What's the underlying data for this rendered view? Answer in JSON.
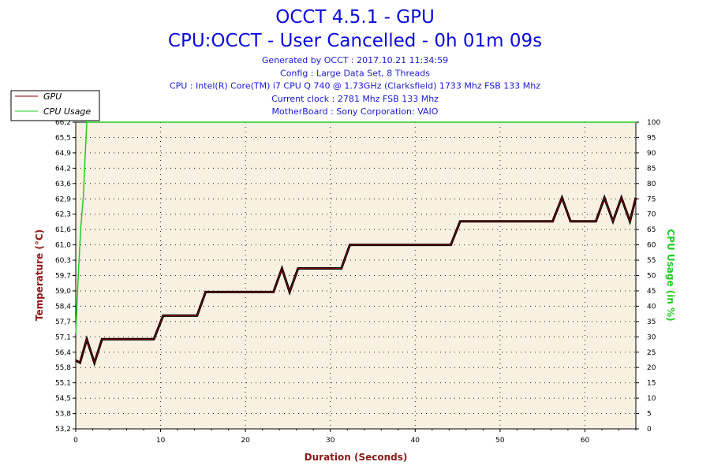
{
  "header": {
    "title": "OCCT 4.5.1 - GPU",
    "subtitle": "CPU:OCCT - User Cancelled - 0h 01m 09s",
    "info_lines": [
      "Generated by OCCT : 2017.10.21 11:34:59",
      "Config : Large Data Set, 8 Threads",
      "CPU : Intel(R) Core(TM) i7 CPU Q 740 @ 1.73GHz (Clarksfield) 1733 Mhz FSB 133 Mhz",
      "Current clock : 2781 Mhz FSB 133 Mhz",
      "MotherBoard : Sony Corporation: VAIO"
    ]
  },
  "legend": {
    "position": "top-left",
    "entries": [
      "GPU",
      "CPU Usage"
    ]
  },
  "colors": {
    "gpu": "#8b0000",
    "cpu": "#22cc22",
    "plot_bg": "#f8f0e0",
    "title": "#0a0ae0",
    "info": "#1a1ad0",
    "left_axis_label": "#8b1a1a",
    "right_axis_label": "#22cc22"
  },
  "chart_data": {
    "type": "line",
    "xlabel": "Duration (Seconds)",
    "ylabel": "Temperature (°C)",
    "y2label": "CPU Usage (in %)",
    "xlim": [
      0,
      66
    ],
    "ylim": [
      53.2,
      66.2
    ],
    "y2lim": [
      0,
      100
    ],
    "grid": true,
    "x_ticks": [
      "0",
      "10",
      "20",
      "30",
      "40",
      "50",
      "60"
    ],
    "y_ticks": [
      "53,2",
      "53,8",
      "54,5",
      "55,1",
      "55,8",
      "56,4",
      "57,1",
      "57,7",
      "58,4",
      "59,0",
      "59,7",
      "60,3",
      "61,0",
      "61,6",
      "62,3",
      "62,9",
      "63,6",
      "64,2",
      "64,9",
      "65,5",
      "66,2"
    ],
    "y2_ticks": [
      "0",
      "5",
      "10",
      "15",
      "20",
      "25",
      "30",
      "35",
      "40",
      "45",
      "50",
      "55",
      "60",
      "65",
      "70",
      "75",
      "80",
      "85",
      "90",
      "95",
      "100"
    ],
    "series": [
      {
        "name": "GPU",
        "axis": "left",
        "points": [
          [
            0,
            56.1
          ],
          [
            0.5,
            56.0
          ],
          [
            1.3,
            57.0
          ],
          [
            2.2,
            56.0
          ],
          [
            3.1,
            57.0
          ],
          [
            9.2,
            57.0
          ],
          [
            10.3,
            58.0
          ],
          [
            14.3,
            58.0
          ],
          [
            15.3,
            59.0
          ],
          [
            23.3,
            59.0
          ],
          [
            24.3,
            60.0
          ],
          [
            25.2,
            59.0
          ],
          [
            26.2,
            60.0
          ],
          [
            31.3,
            60.0
          ],
          [
            32.3,
            61.0
          ],
          [
            44.2,
            61.0
          ],
          [
            45.3,
            62.0
          ],
          [
            56.2,
            62.0
          ],
          [
            57.3,
            63.0
          ],
          [
            58.3,
            62.0
          ],
          [
            61.3,
            62.0
          ],
          [
            62.3,
            63.0
          ],
          [
            63.3,
            62.0
          ],
          [
            64.3,
            63.0
          ],
          [
            65.3,
            62.0
          ],
          [
            66.0,
            63.0
          ]
        ]
      },
      {
        "name": "CPU Usage",
        "axis": "right",
        "points": [
          [
            0,
            31
          ],
          [
            0.3,
            50
          ],
          [
            0.6,
            66
          ],
          [
            0.9,
            76
          ],
          [
            1.1,
            88
          ],
          [
            1.3,
            100
          ],
          [
            66,
            100
          ]
        ]
      }
    ]
  }
}
